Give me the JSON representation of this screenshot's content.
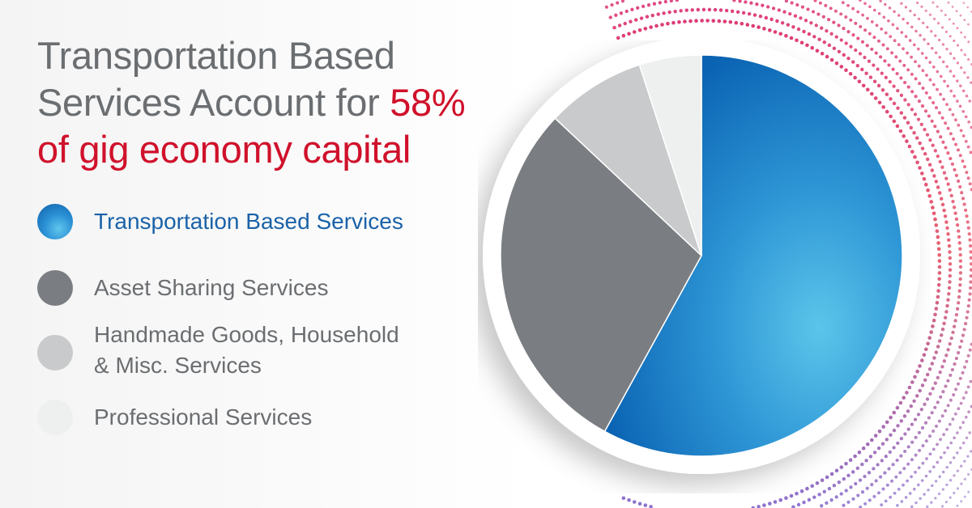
{
  "headline": {
    "line1": "Transportation Based",
    "line2_prefix": "Services Account for",
    "line2_highlight": "58%",
    "line3": "of gig economy capital"
  },
  "colors": {
    "title_gray": "#6b6e71",
    "highlight_red": "#d0112b",
    "transportation_blue": "#1b74c2",
    "asset_gray": "#7a7d81",
    "handmade_lightgray": "#c9cacb",
    "professional_offwhite": "#eeefef",
    "legend_blue_text": "#1a62a8"
  },
  "chart_data": {
    "type": "pie",
    "title": "Transportation Based Services Account for 58% of gig economy capital",
    "categories": [
      "Transportation Based Services",
      "Asset Sharing Services",
      "Handmade Goods, Household & Misc. Services",
      "Professional Services"
    ],
    "values": [
      58,
      29,
      8,
      5
    ],
    "unit": "%",
    "legend_position": "left",
    "legend": [
      {
        "line1": "Transportation Based Services",
        "line2": "",
        "color": "#1b74c2",
        "text_color": "#1a62a8"
      },
      {
        "line1": "Asset Sharing Services",
        "line2": "",
        "color": "#7a7d81",
        "text_color": "#6b6e71"
      },
      {
        "line1": "Handmade Goods, Household",
        "line2": "& Misc. Services",
        "color": "#c9cacb",
        "text_color": "#6b6e71"
      },
      {
        "line1": "Professional Services",
        "line2": "",
        "color": "#eeefef",
        "text_color": "#6b6e71"
      }
    ]
  }
}
